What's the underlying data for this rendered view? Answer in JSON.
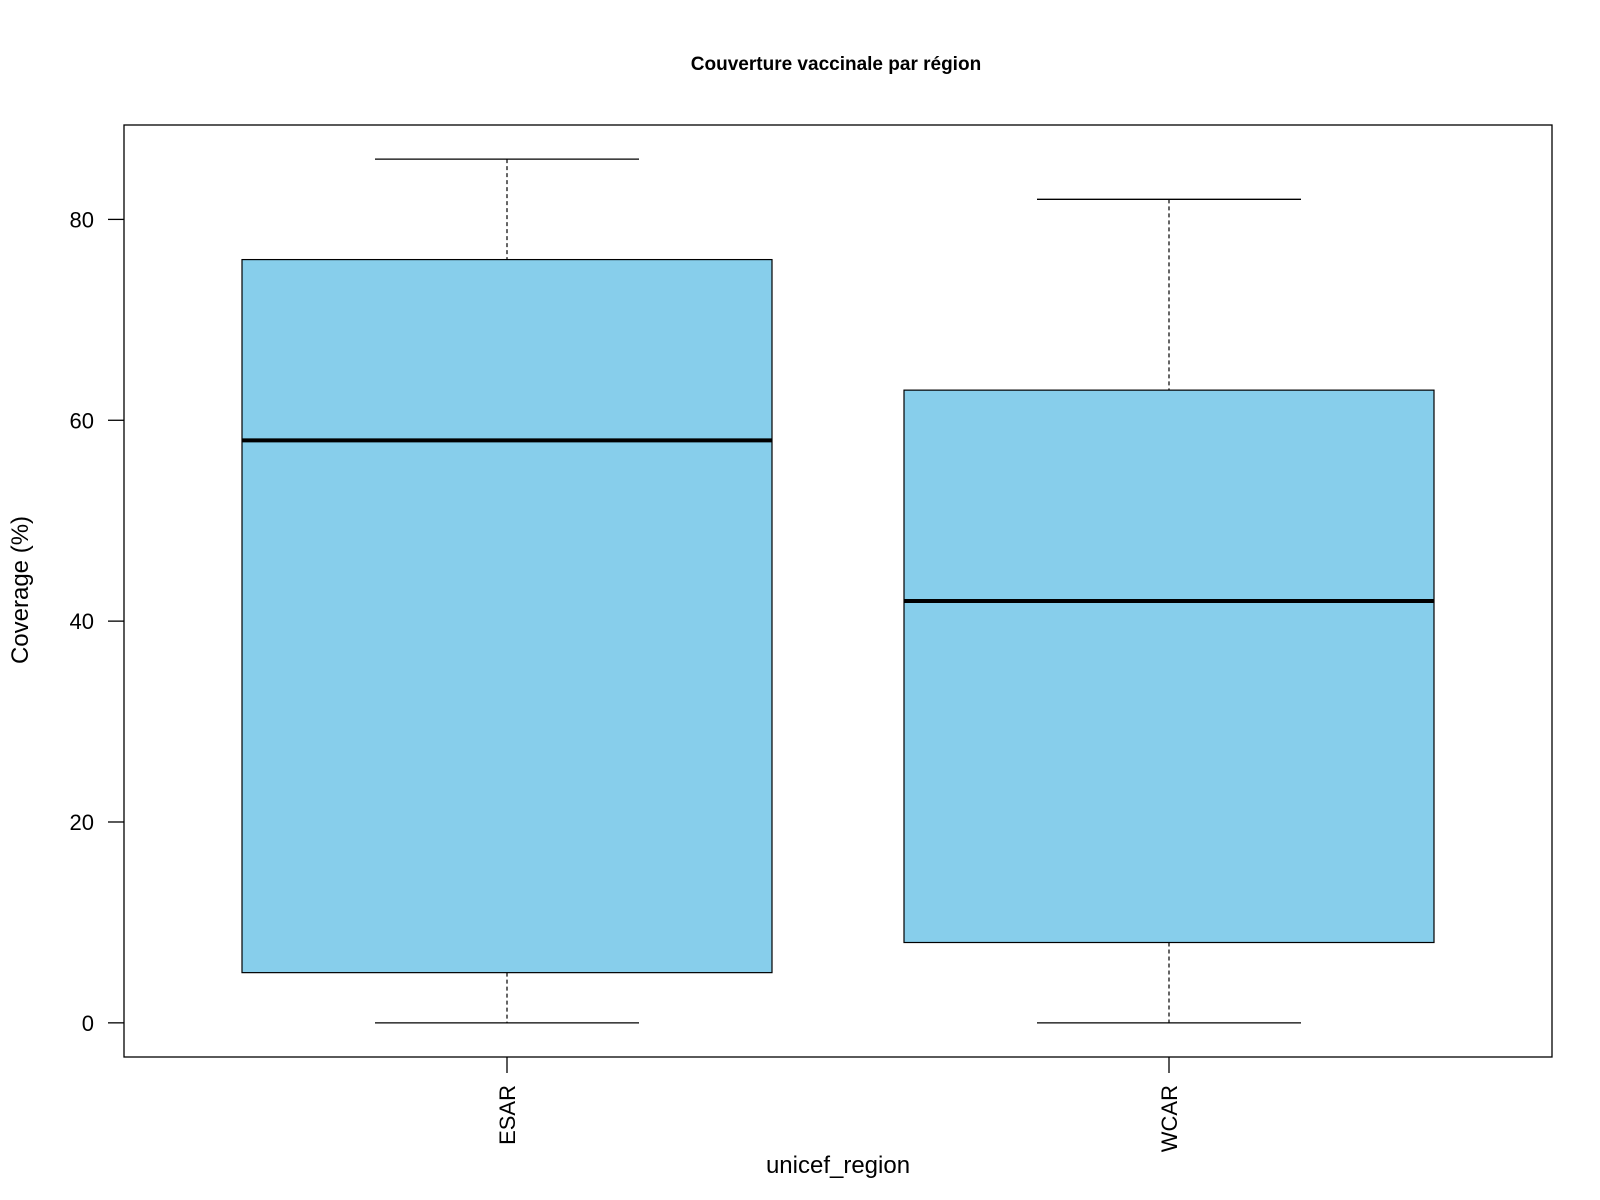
{
  "chart_data": {
    "type": "box",
    "title": "Couverture vaccinale par région",
    "xlabel": "unicef_region",
    "ylabel": "Coverage (%)",
    "categories": [
      "ESAR",
      "WCAR"
    ],
    "boxes": [
      {
        "name": "ESAR",
        "min": 0,
        "q1": 5,
        "median": 58,
        "q3": 76,
        "max": 86
      },
      {
        "name": "WCAR",
        "min": 0,
        "q1": 8,
        "median": 42,
        "q3": 63,
        "max": 82
      }
    ],
    "ylim": [
      -3.4,
      89.4
    ],
    "yticks": [
      0,
      20,
      40,
      60,
      80
    ],
    "grid": false,
    "legend": "none",
    "box_color": "#87CEEB",
    "line_color": "#000000"
  }
}
